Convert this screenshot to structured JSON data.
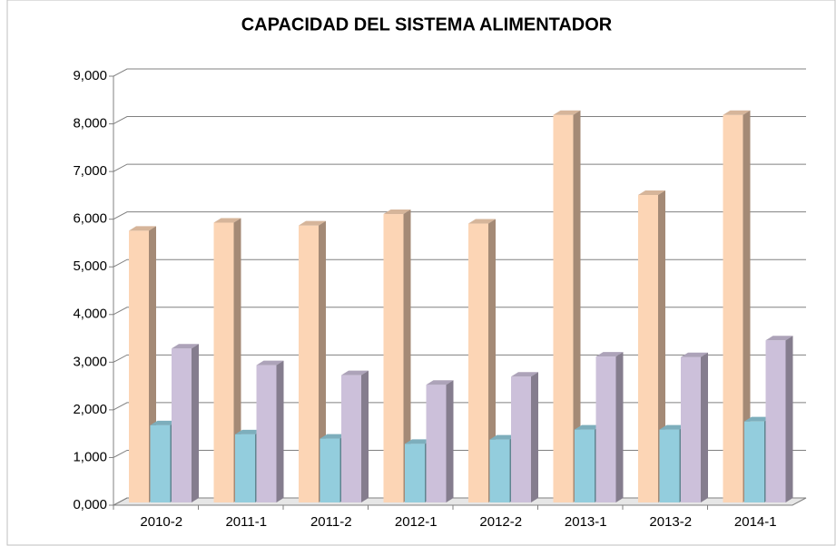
{
  "chart_data": {
    "type": "bar3d",
    "title": "CAPACIDAD DEL SISTEMA ALIMENTADOR",
    "categories": [
      "2010-2",
      "2011-1",
      "2011-2",
      "2012-1",
      "2012-2",
      "2013-1",
      "2013-2",
      "2014-1"
    ],
    "series": [
      {
        "color": "#fcd5b5",
        "values": [
          5700,
          5870,
          5810,
          6050,
          5850,
          8130,
          6450,
          8130
        ]
      },
      {
        "color": "#93cddd",
        "values": [
          1620,
          1430,
          1340,
          1230,
          1320,
          1530,
          1530,
          1700
        ]
      },
      {
        "color": "#ccc0da",
        "values": [
          3230,
          2880,
          2670,
          2470,
          2640,
          3060,
          3050,
          3400
        ]
      }
    ],
    "ylim": [
      0,
      9000
    ],
    "yticks": [
      {
        "value": 0,
        "label": "0,000"
      },
      {
        "value": 1000,
        "label": "1,000"
      },
      {
        "value": 2000,
        "label": "2,000"
      },
      {
        "value": 3000,
        "label": "3,000"
      },
      {
        "value": 4000,
        "label": "4,000"
      },
      {
        "value": 5000,
        "label": "5,000"
      },
      {
        "value": 6000,
        "label": "6,000"
      },
      {
        "value": 7000,
        "label": "7,000"
      },
      {
        "value": 8000,
        "label": "8,000"
      },
      {
        "value": 9000,
        "label": "9,000"
      }
    ],
    "grid": true
  }
}
